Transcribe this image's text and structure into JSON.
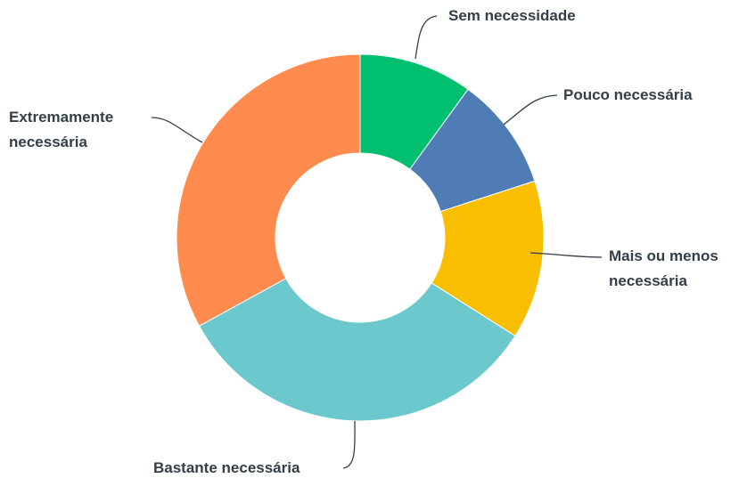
{
  "chart_data": {
    "type": "donut",
    "categories": [
      "Sem necessidade",
      "Pouco necessária",
      "Mais ou menos necessária",
      "Bastante necessária",
      "Extremamente necessária"
    ],
    "values": [
      10,
      10,
      14,
      33,
      33
    ],
    "colors": [
      "#00bf6f",
      "#507cb6",
      "#f9be00",
      "#6bc8cd",
      "#ff8b4f"
    ]
  }
}
